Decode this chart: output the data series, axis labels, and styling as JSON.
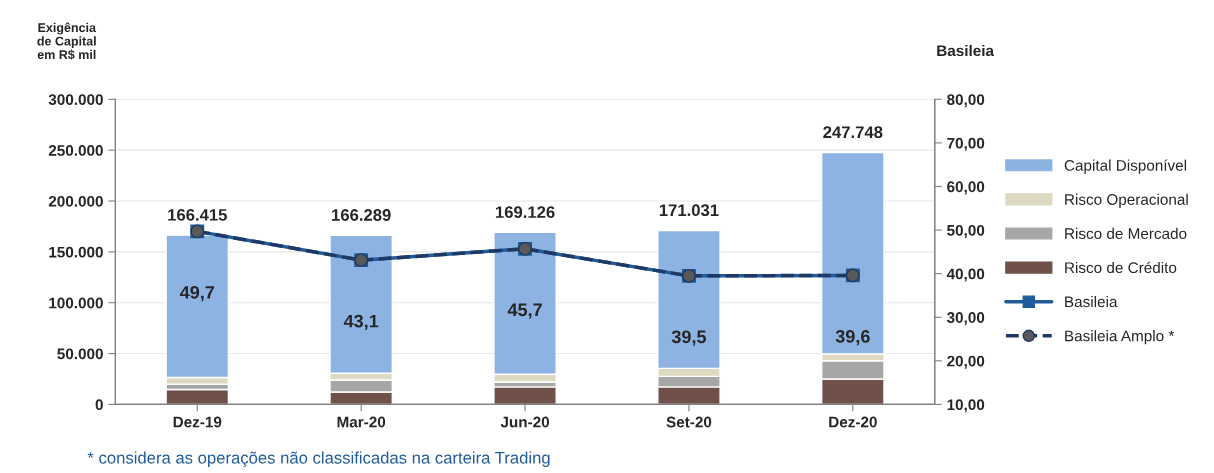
{
  "chart_data": {
    "type": "bar",
    "stacked": true,
    "ylabel": "Exigência\nde Capital\nem R$ mil",
    "y2label": "Basileia",
    "categories": [
      "Dez-19",
      "Mar-20",
      "Jun-20",
      "Set-20",
      "Dez-20"
    ],
    "series": [
      {
        "name": "Risco de Crédito",
        "color": "#6f5149",
        "values": [
          14700,
          12200,
          17200,
          17200,
          25000
        ]
      },
      {
        "name": "Risco de Mercado",
        "color": "#a6a6a6",
        "values": [
          5200,
          11800,
          4800,
          10400,
          18000
        ]
      },
      {
        "name": "Risco Operacional",
        "color": "#ddd9c3",
        "values": [
          6600,
          6700,
          7700,
          7800,
          6700
        ]
      },
      {
        "name": "Capital Disponível",
        "color": "#8db3e2",
        "values": [
          139915,
          135589,
          139426,
          135631,
          198048
        ]
      },
      {
        "name": "Basileia",
        "type": "line",
        "axis": "y2",
        "color": "#1f5c99",
        "marker": "square",
        "line_style": "solid",
        "values": [
          49.7,
          43.1,
          45.7,
          39.5,
          39.6
        ],
        "value_labels": [
          "49,7",
          "43,1",
          "45,7",
          "39,5",
          "39,6"
        ]
      },
      {
        "name": "Basileia Amplo *",
        "type": "line",
        "axis": "y2",
        "color": "#1f3864",
        "marker": "circle",
        "line_style": "dashed",
        "values": [
          49.7,
          43.1,
          45.7,
          39.5,
          39.6
        ]
      }
    ],
    "totals": [
      "166.415",
      "166.289",
      "169.126",
      "171.031",
      "247.748"
    ],
    "ylim": [
      0,
      300000
    ],
    "yticks": [
      {
        "value": 0,
        "label": "0"
      },
      {
        "value": 50000,
        "label": "50.000"
      },
      {
        "value": 100000,
        "label": "100.000"
      },
      {
        "value": 150000,
        "label": "150.000"
      },
      {
        "value": 200000,
        "label": "200.000"
      },
      {
        "value": 250000,
        "label": "250.000"
      },
      {
        "value": 300000,
        "label": "300.000"
      }
    ],
    "y2lim": [
      10,
      80
    ],
    "y2ticks": [
      {
        "value": 10,
        "label": "10,00"
      },
      {
        "value": 20,
        "label": "20,00"
      },
      {
        "value": 30,
        "label": "30,00"
      },
      {
        "value": 40,
        "label": "40,00"
      },
      {
        "value": 50,
        "label": "50,00"
      },
      {
        "value": 60,
        "label": "60,00"
      },
      {
        "value": 70,
        "label": "70,00"
      },
      {
        "value": 80,
        "label": "80,00"
      }
    ],
    "grid": "y",
    "legend": "right",
    "annotations": [
      "* considera as operações não classificadas na carteira Trading"
    ]
  }
}
